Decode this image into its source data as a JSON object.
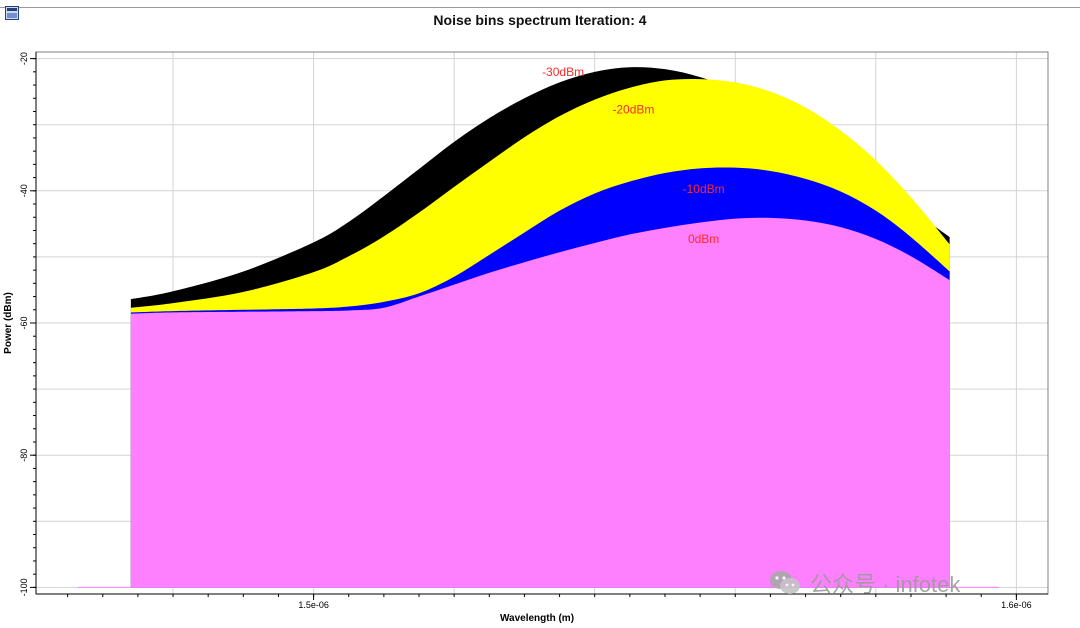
{
  "chart_data": {
    "type": "area",
    "title": "Noise bins spectrum Iteration: 4",
    "xlabel": "Wavelength (m)",
    "ylabel": "Power (dBm)",
    "xlim": [
      1.4605e-06,
      1.6045e-06
    ],
    "ylim": [
      -101,
      -19
    ],
    "x_ticks": [
      1.5e-06,
      1.6e-06
    ],
    "x_tick_labels": [
      "1.5e-06",
      "1.6e-06"
    ],
    "y_ticks": [
      -20,
      -40,
      -60,
      -80,
      -100
    ],
    "y_tick_labels": [
      "-20",
      "-40",
      "-60",
      "-80",
      "-100"
    ],
    "grid": true,
    "x_start": 1.474e-06,
    "x_end": 1.5905e-06,
    "series": [
      {
        "name": "0dBm",
        "color": "#ff80ff",
        "x": [
          1.474e-06,
          1.48e-06,
          1.49e-06,
          1.5e-06,
          1.505e-06,
          1.51e-06,
          1.515e-06,
          1.52e-06,
          1.525e-06,
          1.53e-06,
          1.535e-06,
          1.54e-06,
          1.545e-06,
          1.55e-06,
          1.555e-06,
          1.56e-06,
          1.565e-06,
          1.57e-06,
          1.575e-06,
          1.58e-06,
          1.585e-06,
          1.5905e-06
        ],
        "values": [
          -58.6,
          -58.4,
          -58.3,
          -58.2,
          -58.1,
          -57.7,
          -56.0,
          -54.2,
          -52.4,
          -50.8,
          -49.3,
          -47.9,
          -46.6,
          -45.6,
          -44.8,
          -44.2,
          -44.1,
          -44.5,
          -45.5,
          -47.3,
          -49.9,
          -53.5
        ]
      },
      {
        "name": "-10dBm",
        "color": "#0000ff",
        "x": [
          1.474e-06,
          1.48e-06,
          1.49e-06,
          1.5e-06,
          1.505e-06,
          1.51e-06,
          1.515e-06,
          1.52e-06,
          1.525e-06,
          1.53e-06,
          1.535e-06,
          1.54e-06,
          1.545e-06,
          1.55e-06,
          1.555e-06,
          1.56e-06,
          1.565e-06,
          1.57e-06,
          1.575e-06,
          1.58e-06,
          1.585e-06,
          1.5905e-06
        ],
        "values": [
          -58.4,
          -58.2,
          -58.0,
          -57.8,
          -57.5,
          -56.8,
          -55.5,
          -53.0,
          -49.7,
          -46.3,
          -43.0,
          -40.4,
          -38.6,
          -37.3,
          -36.6,
          -36.5,
          -37.0,
          -38.2,
          -40.1,
          -43.0,
          -47.0,
          -52.2
        ]
      },
      {
        "name": "-20dBm",
        "color": "#ffff00",
        "x": [
          1.474e-06,
          1.48e-06,
          1.49e-06,
          1.5e-06,
          1.505e-06,
          1.51e-06,
          1.515e-06,
          1.52e-06,
          1.525e-06,
          1.53e-06,
          1.535e-06,
          1.54e-06,
          1.545e-06,
          1.55e-06,
          1.555e-06,
          1.56e-06,
          1.565e-06,
          1.57e-06,
          1.575e-06,
          1.58e-06,
          1.585e-06,
          1.5905e-06
        ],
        "values": [
          -57.7,
          -57.0,
          -55.3,
          -52.3,
          -49.9,
          -46.9,
          -43.3,
          -39.4,
          -35.6,
          -31.9,
          -28.7,
          -26.2,
          -24.4,
          -23.3,
          -23.1,
          -23.6,
          -25.0,
          -27.4,
          -30.9,
          -35.4,
          -41.0,
          -48.1
        ]
      },
      {
        "name": "-30dBm",
        "color": "#000000",
        "x": [
          1.474e-06,
          1.48e-06,
          1.49e-06,
          1.5e-06,
          1.505e-06,
          1.51e-06,
          1.515e-06,
          1.52e-06,
          1.525e-06,
          1.53e-06,
          1.535e-06,
          1.54e-06,
          1.545e-06,
          1.55e-06,
          1.555e-06,
          1.56e-06,
          1.565e-06,
          1.57e-06,
          1.575e-06,
          1.58e-06,
          1.585e-06,
          1.5905e-06
        ],
        "values": [
          -56.4,
          -55.2,
          -52.2,
          -47.8,
          -44.7,
          -40.8,
          -36.7,
          -32.6,
          -29.0,
          -26.0,
          -23.6,
          -22.0,
          -21.3,
          -21.6,
          -22.8,
          -24.7,
          -27.2,
          -30.3,
          -33.9,
          -38.2,
          -42.7,
          -47.0
        ]
      }
    ],
    "annotations": [
      {
        "text": "-30dBm",
        "x": 1.5355e-06,
        "y": -22.6
      },
      {
        "text": "-20dBm",
        "x": 1.5455e-06,
        "y": -28.3
      },
      {
        "text": "-10dBm",
        "x": 1.5555e-06,
        "y": -40.3
      },
      {
        "text": "0dBm",
        "x": 1.5555e-06,
        "y": -47.9
      }
    ],
    "annotation_color": "#ff2a2a",
    "baseline_color": "#ff80ff"
  },
  "watermark": {
    "text": "公众号 · infotek"
  },
  "app_icon": "chart-window-icon"
}
